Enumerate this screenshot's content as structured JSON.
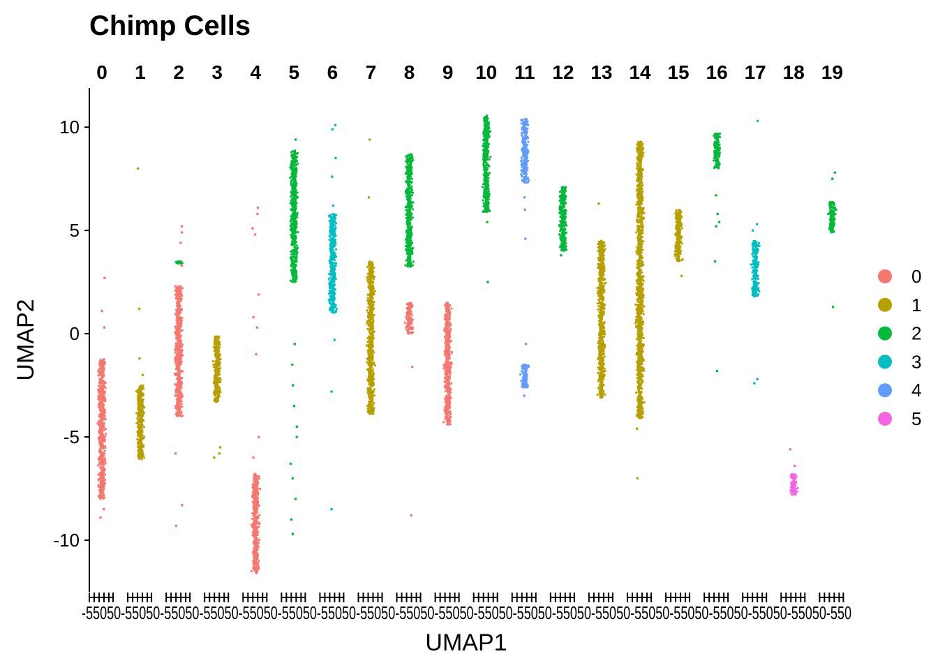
{
  "chart_data": {
    "type": "scatter",
    "title": "Chimp Cells",
    "xlabel": "UMAP1",
    "ylabel": "UMAP2",
    "ylim": [
      -12.5,
      11.9
    ],
    "y_ticks": [
      -10,
      -5,
      0,
      5,
      10
    ],
    "y_tick_labels": [
      "-10",
      "-5",
      "0",
      "5",
      "10"
    ],
    "facet_x_tick_labels": [
      "-5",
      "0",
      "5"
    ],
    "x_axis_tick_text": "-55050-55050-55050-55050-55050-55050-55050-55050-55050-55050-55050-55050-55050-55050-55050-55050-55050-55050-55050-550",
    "facets": [
      "0",
      "1",
      "2",
      "3",
      "4",
      "5",
      "6",
      "7",
      "8",
      "9",
      "10",
      "11",
      "12",
      "13",
      "14",
      "15",
      "16",
      "17",
      "18",
      "19"
    ],
    "legend": {
      "placement": "right",
      "entries": [
        {
          "label": "0",
          "color": "#F8766D"
        },
        {
          "label": "1",
          "color": "#B79F00"
        },
        {
          "label": "2",
          "color": "#00BA38"
        },
        {
          "label": "3",
          "color": "#00BFC4"
        },
        {
          "label": "4",
          "color": "#619CFF"
        },
        {
          "label": "5",
          "color": "#F564E3"
        }
      ]
    },
    "clusters": [
      {
        "facet": "0",
        "series": "0",
        "y_range": [
          -8.0,
          -1.2
        ],
        "outliers": [
          -8.5,
          -8.9,
          1.1,
          2.7,
          0.3
        ]
      },
      {
        "facet": "1",
        "series": "1",
        "y_range": [
          -6.1,
          -2.5
        ],
        "outliers": [
          8.0,
          1.2,
          -1.2,
          -2.0
        ]
      },
      {
        "facet": "2",
        "series": "0",
        "y_range": [
          -4.0,
          2.3
        ],
        "outliers": [
          5.2,
          4.9,
          4.4,
          3.3,
          -5.8,
          -8.3,
          -9.3
        ]
      },
      {
        "facet": "2",
        "series": "2",
        "y_range": [
          3.4,
          3.5
        ],
        "outliers": []
      },
      {
        "facet": "3",
        "series": "1",
        "y_range": [
          -3.3,
          -0.1
        ],
        "outliers": [
          -5.5,
          -5.8,
          -6.0
        ]
      },
      {
        "facet": "4",
        "series": "0",
        "y_range": [
          -11.6,
          -6.8
        ],
        "outliers": [
          6.1,
          5.8,
          5.1,
          4.8,
          0.8,
          0.3,
          -1.0,
          -5.0,
          -6.0,
          1.9
        ]
      },
      {
        "facet": "5",
        "series": "2",
        "y_range": [
          2.5,
          8.9
        ],
        "outliers": [
          9.4,
          -0.5,
          -1.5,
          -2.5,
          -3.5,
          -4.5,
          -5.0,
          -6.3,
          -7.0,
          -8.0,
          -9.0,
          -9.7
        ]
      },
      {
        "facet": "6",
        "series": "3",
        "y_range": [
          1.0,
          5.8
        ],
        "outliers": [
          10.1,
          9.9,
          8.5,
          7.6,
          6.2,
          -0.3,
          -2.8,
          -8.5
        ]
      },
      {
        "facet": "7",
        "series": "1",
        "y_range": [
          -3.9,
          3.5
        ],
        "outliers": [
          9.4,
          6.6
        ]
      },
      {
        "facet": "8",
        "series": "2",
        "y_range": [
          3.2,
          8.7
        ],
        "outliers": []
      },
      {
        "facet": "8",
        "series": "0",
        "y_range": [
          0.0,
          1.5
        ],
        "outliers": [
          -1.6,
          -8.8
        ]
      },
      {
        "facet": "9",
        "series": "0",
        "y_range": [
          -4.4,
          1.5
        ],
        "outliers": []
      },
      {
        "facet": "10",
        "series": "2",
        "y_range": [
          5.9,
          10.6
        ],
        "outliers": [
          5.4,
          2.5
        ]
      },
      {
        "facet": "11",
        "series": "4",
        "y_range": [
          7.3,
          10.4
        ],
        "outliers": [
          6.6,
          6.0,
          4.6
        ]
      },
      {
        "facet": "11",
        "series": "4",
        "y_range": [
          -2.6,
          -1.5
        ],
        "outliers": [
          -0.5,
          -3.0
        ]
      },
      {
        "facet": "12",
        "series": "2",
        "y_range": [
          4.0,
          7.1
        ],
        "outliers": [
          3.8
        ]
      },
      {
        "facet": "13",
        "series": "1",
        "y_range": [
          -3.1,
          4.5
        ],
        "outliers": [
          6.3
        ]
      },
      {
        "facet": "14",
        "series": "1",
        "y_range": [
          -4.1,
          9.3
        ],
        "outliers": [
          -4.6,
          -7.0,
          6.0
        ]
      },
      {
        "facet": "15",
        "series": "1",
        "y_range": [
          3.5,
          6.0
        ],
        "outliers": [
          2.8
        ]
      },
      {
        "facet": "16",
        "series": "2",
        "y_range": [
          8.0,
          9.7
        ],
        "outliers": [
          6.7,
          5.8,
          5.4,
          5.2,
          3.5,
          -1.8
        ]
      },
      {
        "facet": "17",
        "series": "3",
        "y_range": [
          1.8,
          4.5
        ],
        "outliers": [
          10.3,
          5.3,
          5.0,
          -2.2,
          -2.4
        ]
      },
      {
        "facet": "18",
        "series": "5",
        "y_range": [
          -7.8,
          -6.8
        ],
        "outliers": [
          -6.4,
          -5.6
        ]
      },
      {
        "facet": "19",
        "series": "2",
        "y_range": [
          4.9,
          6.4
        ],
        "outliers": [
          7.8,
          7.5,
          1.3
        ]
      }
    ]
  }
}
